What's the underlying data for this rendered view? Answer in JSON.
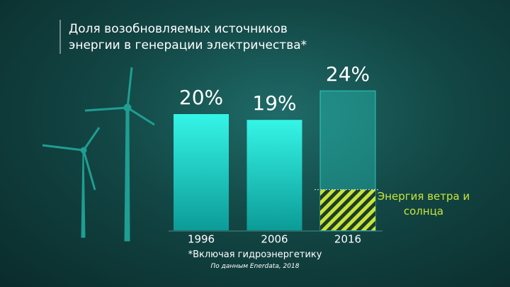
{
  "chart_data": {
    "type": "bar",
    "title": "Доля возобновляемых источников энергии в генерации электричества*",
    "categories": [
      "1996",
      "2006",
      "2016"
    ],
    "values": [
      20,
      19,
      24
    ],
    "value_labels": [
      "20%",
      "19%",
      "24%"
    ],
    "color": "#2ff0e2",
    "highlight": {
      "name": "Энергия ветра и солнца",
      "color": "#c9e43a",
      "values": [
        null,
        null,
        7
      ]
    },
    "footnotes": [
      "*Включая гидроэнергетику",
      "По данным Enerdata, 2018"
    ]
  }
}
